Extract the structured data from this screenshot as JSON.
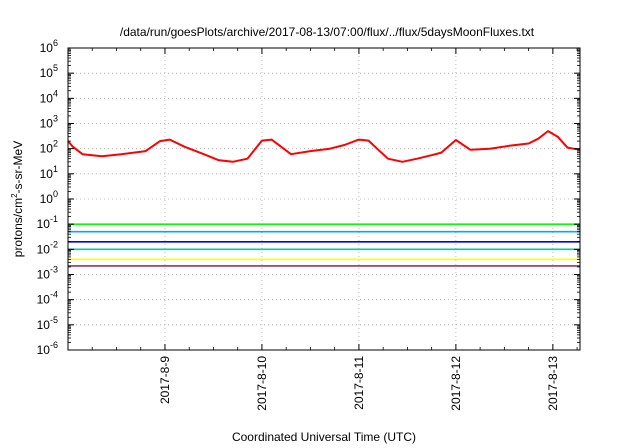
{
  "chart_data": {
    "type": "line",
    "title": "/data/run/goesPlots/archive/2017-08-13/07:00/flux/../flux/5daysMoonFluxes.txt",
    "xlabel": "Coordinated Universal Time (UTC)",
    "ylabel_parts": [
      "protons/cm",
      "2",
      "-s-sr-MeV"
    ],
    "yscale": "log",
    "ylim_exp": [
      -6,
      6
    ],
    "y_ticks": [
      {
        "base": "10",
        "exp": "6"
      },
      {
        "base": "10",
        "exp": "5"
      },
      {
        "base": "10",
        "exp": "4"
      },
      {
        "base": "10",
        "exp": "3"
      },
      {
        "base": "10",
        "exp": "2"
      },
      {
        "base": "10",
        "exp": "1"
      },
      {
        "base": "10",
        "exp": "0"
      },
      {
        "base": "10",
        "exp": "-1"
      },
      {
        "base": "10",
        "exp": "-2"
      },
      {
        "base": "10",
        "exp": "-3"
      },
      {
        "base": "10",
        "exp": "-4"
      },
      {
        "base": "10",
        "exp": "-5"
      },
      {
        "base": "10",
        "exp": "-6"
      }
    ],
    "xlim_days": [
      0,
      5.28
    ],
    "x_ticks": [
      {
        "label": "2017-8-9",
        "day": 1
      },
      {
        "label": "2017-8-10",
        "day": 2
      },
      {
        "label": "2017-8-11",
        "day": 3
      },
      {
        "label": "2017-8-12",
        "day": 4
      },
      {
        "label": "2017-8-13",
        "day": 5
      }
    ],
    "grid": true,
    "series": [
      {
        "color": "#ff0000",
        "x": [
          0,
          0.05,
          0.15,
          0.35,
          0.55,
          0.8,
          0.95,
          1.05,
          1.2,
          1.4,
          1.55,
          1.7,
          1.85,
          2.0,
          2.1,
          2.3,
          2.5,
          2.7,
          2.85,
          3.0,
          3.1,
          3.2,
          3.3,
          3.45,
          3.6,
          3.75,
          3.85,
          4.0,
          4.15,
          4.35,
          4.55,
          4.75,
          4.85,
          4.95,
          5.05,
          5.15,
          5.28
        ],
        "y": [
          200,
          120,
          60,
          50,
          60,
          80,
          200,
          230,
          120,
          60,
          35,
          30,
          40,
          210,
          230,
          60,
          80,
          100,
          140,
          230,
          210,
          90,
          40,
          30,
          40,
          55,
          70,
          220,
          90,
          100,
          130,
          160,
          250,
          500,
          300,
          110,
          90
        ]
      },
      {
        "color": "#00ff00",
        "x": [
          0,
          1,
          2,
          3,
          4,
          5,
          5.28
        ],
        "y": [
          0.1,
          0.1,
          0.1,
          0.1,
          0.1,
          0.1,
          0.1
        ]
      },
      {
        "color": "#00aaff",
        "x": [
          0,
          1,
          2,
          3,
          4,
          5,
          5.28
        ],
        "y": [
          0.05,
          0.05,
          0.05,
          0.05,
          0.05,
          0.05,
          0.05
        ]
      },
      {
        "color": "#0000ff",
        "x": [
          0,
          1,
          2,
          3,
          4,
          5,
          5.28
        ],
        "y": [
          0.02,
          0.02,
          0.02,
          0.02,
          0.02,
          0.02,
          0.02
        ]
      },
      {
        "color": "#00ccaa",
        "x": [
          0,
          1,
          2,
          3,
          4,
          5,
          5.28
        ],
        "y": [
          0.01,
          0.01,
          0.01,
          0.01,
          0.01,
          0.01,
          0.01
        ]
      },
      {
        "color": "#ffff00",
        "x": [
          0,
          1,
          2,
          3,
          4,
          5,
          5.28
        ],
        "y": [
          0.004,
          0.004,
          0.004,
          0.004,
          0.004,
          0.004,
          0.004
        ]
      },
      {
        "color": "#993366",
        "x": [
          0,
          1,
          2,
          3,
          4,
          5,
          5.28
        ],
        "y": [
          0.0022,
          0.0022,
          0.0022,
          0.0022,
          0.0022,
          0.0022,
          0.0022
        ]
      }
    ]
  }
}
